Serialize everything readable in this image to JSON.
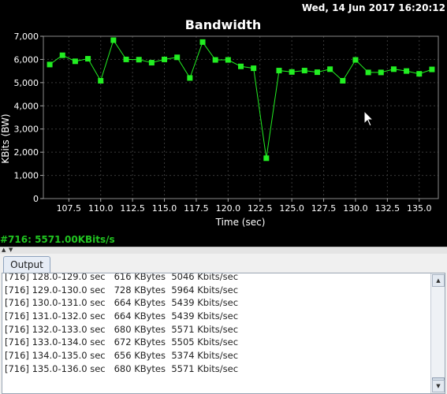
{
  "header": {
    "timestamp": "Wed, 14 Jun 2017 16:20:12"
  },
  "chart_data": {
    "type": "line",
    "title": "Bandwidth",
    "xlabel": "Time (sec)",
    "ylabel": "KBits (BW)",
    "xlim": [
      105.5,
      136.5
    ],
    "ylim": [
      0,
      7000
    ],
    "grid": true,
    "x_ticks": [
      "107.5",
      "110.0",
      "112.5",
      "115.0",
      "117.5",
      "120.0",
      "122.5",
      "125.0",
      "127.5",
      "130.0",
      "132.5",
      "135.0"
    ],
    "y_ticks": [
      "0",
      "1,000",
      "2,000",
      "3,000",
      "4,000",
      "5,000",
      "6,000",
      "7,000"
    ],
    "series": [
      {
        "color": "#22ee22",
        "x": [
          106,
          107,
          108,
          109,
          110,
          111,
          112,
          113,
          114,
          115,
          116,
          117,
          118,
          119,
          120,
          121,
          122,
          123,
          124,
          125,
          126,
          127,
          128,
          129,
          130,
          131,
          132,
          133,
          134,
          135,
          136
        ],
        "values": [
          5780,
          6180,
          5920,
          6030,
          5080,
          6830,
          6000,
          5990,
          5860,
          6000,
          6090,
          5200,
          6750,
          5980,
          5980,
          5700,
          5620,
          1740,
          5520,
          5460,
          5520,
          5450,
          5580,
          5080,
          5980,
          5440,
          5440,
          5580,
          5500,
          5380,
          5570
        ]
      }
    ]
  },
  "status": {
    "text": "#716: 5571.00KBits/s"
  },
  "output": {
    "tab_label": "Output",
    "lines": [
      "[716] 128.0-129.0 sec   616 KBytes  5046 Kbits/sec",
      "[716] 129.0-130.0 sec   728 KBytes  5964 Kbits/sec",
      "[716] 130.0-131.0 sec   664 KBytes  5439 Kbits/sec",
      "[716] 131.0-132.0 sec   664 KBytes  5439 Kbits/sec",
      "[716] 132.0-133.0 sec   680 KBytes  5571 Kbits/sec",
      "[716] 133.0-134.0 sec   672 KBytes  5505 Kbits/sec",
      "[716] 134.0-135.0 sec   656 KBytes  5374 Kbits/sec",
      "[716] 135.0-136.0 sec   680 KBytes  5571 Kbits/sec"
    ]
  },
  "icons": {
    "scroll_up": "scroll-up-arrow",
    "scroll_down": "scroll-down-arrow",
    "pointer": "mouse-pointer"
  }
}
